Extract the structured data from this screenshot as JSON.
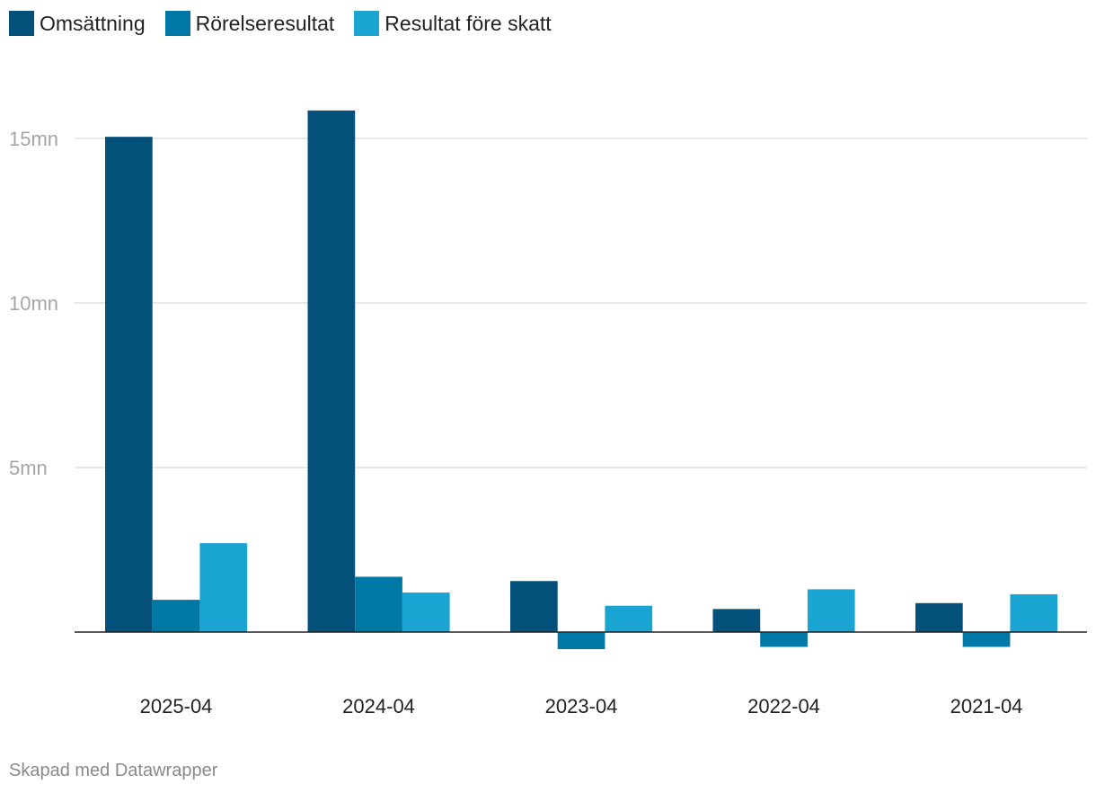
{
  "chart_data": {
    "type": "bar",
    "categories": [
      "2025-04",
      "2024-04",
      "2023-04",
      "2022-04",
      "2021-04"
    ],
    "series": [
      {
        "name": "Omsättning",
        "color": "#03507a",
        "values": [
          15.05,
          15.85,
          1.55,
          0.7,
          0.88
        ]
      },
      {
        "name": "Rörelseresultat",
        "color": "#0078a6",
        "values": [
          0.98,
          1.68,
          -0.52,
          -0.45,
          -0.45
        ]
      },
      {
        "name": "Resultat före skatt",
        "color": "#19a4d1",
        "values": [
          2.7,
          1.2,
          0.8,
          1.3,
          1.15
        ]
      }
    ],
    "yticks": [
      {
        "value": 5,
        "label": "5mn"
      },
      {
        "value": 10,
        "label": "10mn"
      },
      {
        "value": 15,
        "label": "15mn"
      }
    ],
    "ylim": [
      -1,
      16.5
    ],
    "grid": true,
    "legend": "top-left",
    "title": "",
    "xlabel": "",
    "ylabel": ""
  },
  "footer": "Skapad med Datawrapper"
}
